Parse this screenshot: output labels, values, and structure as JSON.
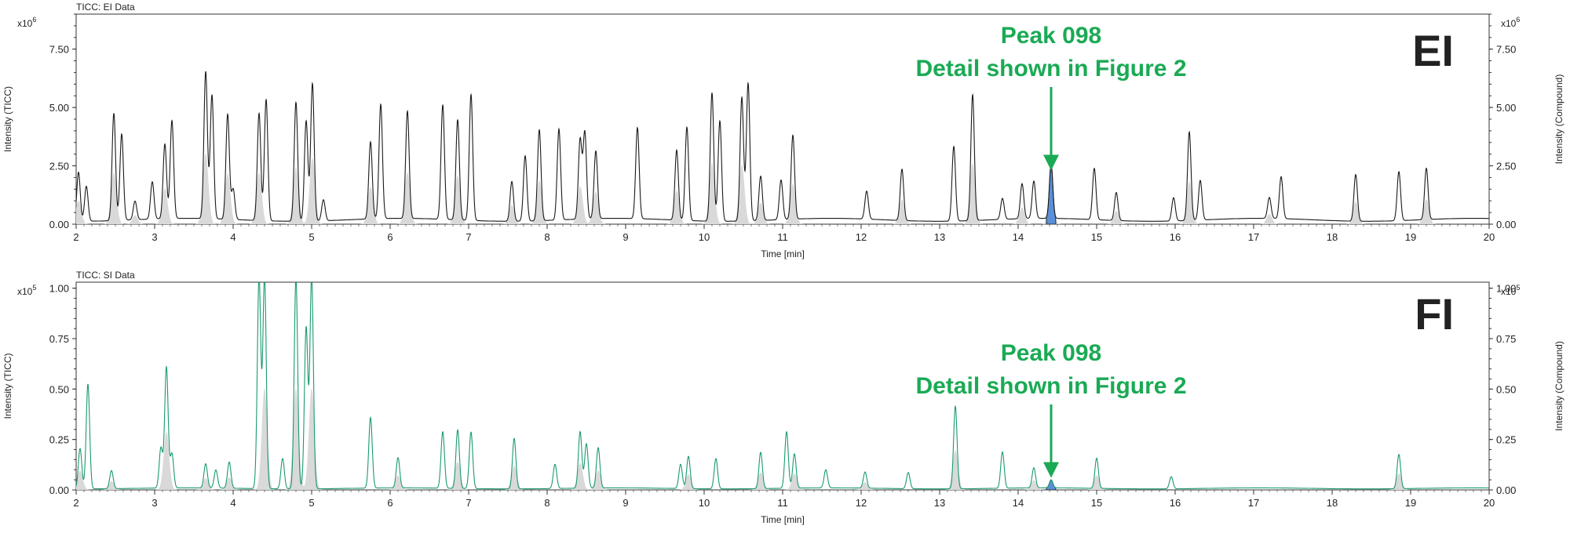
{
  "chart_data": [
    {
      "type": "line",
      "title": "TICC: EI Data",
      "xlabel": "Time [min]",
      "ylabel": "Intensity (TICC)",
      "ylabel_right": "Intensity (Compound)",
      "y_multiplier": "x10",
      "y_exponent": "6",
      "xlim": [
        2,
        20
      ],
      "ylim": [
        0,
        9.0
      ],
      "x_ticks": [
        "2",
        "3",
        "4",
        "5",
        "6",
        "7",
        "8",
        "9",
        "10",
        "11",
        "12",
        "13",
        "14",
        "15",
        "16",
        "17",
        "18",
        "19",
        "20"
      ],
      "y_ticks": [
        "0.00",
        "2.50",
        "5.00",
        "7.50"
      ],
      "y_tick_values": [
        0,
        2.5,
        5.0,
        7.5
      ],
      "panel_label": "EI",
      "annotation": {
        "line1": "Peak 098",
        "line2": "Detail shown in Figure 2",
        "x": 14.42,
        "arrow_to_y": 2.3
      },
      "highlight_peak": {
        "x": 14.42,
        "y": 2.35,
        "color": "#5b8fd6"
      },
      "line_color": "#1a1a1a",
      "fill_color": "#d9d9d9",
      "baseline": 0.25,
      "peaks": [
        {
          "x": 2.03,
          "y": 2.1
        },
        {
          "x": 2.13,
          "y": 1.5
        },
        {
          "x": 2.48,
          "y": 4.6
        },
        {
          "x": 2.58,
          "y": 3.7
        },
        {
          "x": 2.75,
          "y": 0.8
        },
        {
          "x": 2.97,
          "y": 1.6
        },
        {
          "x": 3.13,
          "y": 3.2
        },
        {
          "x": 3.22,
          "y": 4.2
        },
        {
          "x": 3.65,
          "y": 6.3
        },
        {
          "x": 3.73,
          "y": 5.3
        },
        {
          "x": 3.93,
          "y": 4.5
        },
        {
          "x": 4.0,
          "y": 1.3
        },
        {
          "x": 4.33,
          "y": 4.6
        },
        {
          "x": 4.42,
          "y": 5.2
        },
        {
          "x": 4.8,
          "y": 5.1
        },
        {
          "x": 4.93,
          "y": 4.3
        },
        {
          "x": 5.01,
          "y": 5.9
        },
        {
          "x": 5.15,
          "y": 0.9
        },
        {
          "x": 5.75,
          "y": 3.3
        },
        {
          "x": 5.88,
          "y": 4.9
        },
        {
          "x": 6.22,
          "y": 4.6
        },
        {
          "x": 6.67,
          "y": 4.9
        },
        {
          "x": 6.86,
          "y": 4.3
        },
        {
          "x": 7.03,
          "y": 5.4
        },
        {
          "x": 7.55,
          "y": 1.7
        },
        {
          "x": 7.72,
          "y": 2.8
        },
        {
          "x": 7.9,
          "y": 3.9
        },
        {
          "x": 8.15,
          "y": 3.9
        },
        {
          "x": 8.42,
          "y": 3.4
        },
        {
          "x": 8.48,
          "y": 3.7
        },
        {
          "x": 8.62,
          "y": 2.9
        },
        {
          "x": 9.15,
          "y": 3.9
        },
        {
          "x": 9.65,
          "y": 3.0
        },
        {
          "x": 9.78,
          "y": 4.0
        },
        {
          "x": 10.1,
          "y": 5.5
        },
        {
          "x": 10.2,
          "y": 4.3
        },
        {
          "x": 10.48,
          "y": 5.3
        },
        {
          "x": 10.56,
          "y": 5.9
        },
        {
          "x": 10.72,
          "y": 1.9
        },
        {
          "x": 10.98,
          "y": 1.7
        },
        {
          "x": 11.13,
          "y": 3.6
        },
        {
          "x": 12.07,
          "y": 1.2
        },
        {
          "x": 12.52,
          "y": 2.2
        },
        {
          "x": 13.18,
          "y": 3.2
        },
        {
          "x": 13.42,
          "y": 5.4
        },
        {
          "x": 13.8,
          "y": 0.9
        },
        {
          "x": 14.05,
          "y": 1.5
        },
        {
          "x": 14.2,
          "y": 1.6
        },
        {
          "x": 14.42,
          "y": 2.35
        },
        {
          "x": 14.97,
          "y": 2.2
        },
        {
          "x": 15.25,
          "y": 1.2
        },
        {
          "x": 15.98,
          "y": 1.0
        },
        {
          "x": 16.18,
          "y": 3.8
        },
        {
          "x": 16.32,
          "y": 1.7
        },
        {
          "x": 17.2,
          "y": 0.9
        },
        {
          "x": 17.35,
          "y": 1.8
        },
        {
          "x": 18.3,
          "y": 2.0
        },
        {
          "x": 18.85,
          "y": 2.1
        },
        {
          "x": 19.2,
          "y": 2.2
        }
      ]
    },
    {
      "type": "line",
      "title": "TICC: SI Data",
      "xlabel": "Time [min]",
      "ylabel": "Intensity (TICC)",
      "ylabel_right": "Intensity (Compound)",
      "y_multiplier": "x10",
      "y_exponent": "5",
      "xlim": [
        2,
        20
      ],
      "ylim": [
        0,
        1.03
      ],
      "x_ticks": [
        "2",
        "3",
        "4",
        "5",
        "6",
        "7",
        "8",
        "9",
        "10",
        "11",
        "12",
        "13",
        "14",
        "15",
        "16",
        "17",
        "18",
        "19",
        "20"
      ],
      "y_ticks": [
        "0.00",
        "0.25",
        "0.50",
        "0.75",
        "1.00"
      ],
      "y_tick_values": [
        0,
        0.25,
        0.5,
        0.75,
        1.0
      ],
      "panel_label": "FI",
      "annotation": {
        "line1": "Peak 098",
        "line2": "Detail shown in Figure 2",
        "x": 14.42,
        "arrow_to_y": 0.06
      },
      "highlight_peak": {
        "x": 14.42,
        "y": 0.04,
        "color": "#5b8fd6"
      },
      "line_color": "#1a9a6e",
      "fill_color": "#d9d9d9",
      "baseline": 0.01,
      "peaks": [
        {
          "x": 2.05,
          "y": 0.2
        },
        {
          "x": 2.15,
          "y": 0.52
        },
        {
          "x": 2.45,
          "y": 0.09
        },
        {
          "x": 3.08,
          "y": 0.2
        },
        {
          "x": 3.15,
          "y": 0.6
        },
        {
          "x": 3.22,
          "y": 0.17
        },
        {
          "x": 3.65,
          "y": 0.12
        },
        {
          "x": 3.78,
          "y": 0.09
        },
        {
          "x": 3.95,
          "y": 0.13
        },
        {
          "x": 4.33,
          "y": 1.05
        },
        {
          "x": 4.4,
          "y": 1.05
        },
        {
          "x": 4.63,
          "y": 0.15
        },
        {
          "x": 4.8,
          "y": 1.05
        },
        {
          "x": 4.93,
          "y": 0.8
        },
        {
          "x": 5.0,
          "y": 1.05
        },
        {
          "x": 5.75,
          "y": 0.35
        },
        {
          "x": 6.1,
          "y": 0.15
        },
        {
          "x": 6.67,
          "y": 0.28
        },
        {
          "x": 6.86,
          "y": 0.29
        },
        {
          "x": 7.03,
          "y": 0.28
        },
        {
          "x": 7.58,
          "y": 0.25
        },
        {
          "x": 8.1,
          "y": 0.12
        },
        {
          "x": 8.42,
          "y": 0.28
        },
        {
          "x": 8.5,
          "y": 0.22
        },
        {
          "x": 8.65,
          "y": 0.2
        },
        {
          "x": 9.7,
          "y": 0.12
        },
        {
          "x": 9.8,
          "y": 0.16
        },
        {
          "x": 10.15,
          "y": 0.15
        },
        {
          "x": 10.72,
          "y": 0.18
        },
        {
          "x": 11.05,
          "y": 0.28
        },
        {
          "x": 11.15,
          "y": 0.17
        },
        {
          "x": 11.55,
          "y": 0.09
        },
        {
          "x": 12.05,
          "y": 0.08
        },
        {
          "x": 12.6,
          "y": 0.08
        },
        {
          "x": 13.2,
          "y": 0.41
        },
        {
          "x": 13.8,
          "y": 0.18
        },
        {
          "x": 14.2,
          "y": 0.1
        },
        {
          "x": 14.42,
          "y": 0.04
        },
        {
          "x": 15.0,
          "y": 0.15
        },
        {
          "x": 15.95,
          "y": 0.06
        },
        {
          "x": 18.85,
          "y": 0.17
        }
      ]
    }
  ]
}
